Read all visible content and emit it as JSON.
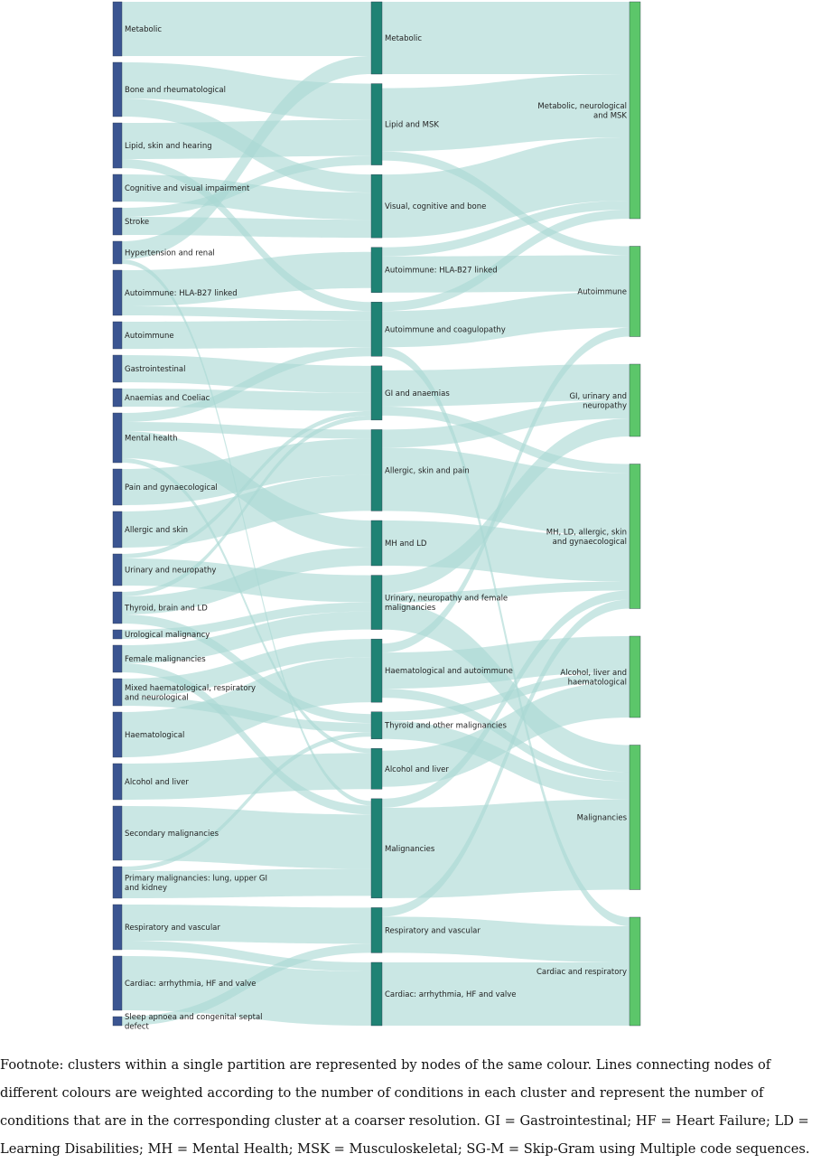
{
  "colors": {
    "level1": "#3b5591",
    "level2": "#1f8274",
    "level3": "#5cc66a",
    "link": "#a9d8d3"
  },
  "levels": [
    {
      "id": "fine",
      "nodes": [
        {
          "id": "f1",
          "label": "Metabolic"
        },
        {
          "id": "f2",
          "label": "Bone and rheumatological"
        },
        {
          "id": "f3",
          "label": "Lipid, skin and hearing"
        },
        {
          "id": "f4",
          "label": "Cognitive and visual impairment"
        },
        {
          "id": "f5",
          "label": "Stroke"
        },
        {
          "id": "f6",
          "label": "Hypertension and renal"
        },
        {
          "id": "f7",
          "label": "Autoimmune: HLA-B27 linked"
        },
        {
          "id": "f8",
          "label": "Autoimmune"
        },
        {
          "id": "f9",
          "label": "Gastrointestinal"
        },
        {
          "id": "f10",
          "label": "Anaemias and Coeliac"
        },
        {
          "id": "f11",
          "label": "Mental health"
        },
        {
          "id": "f12",
          "label": "Pain and gynaecological"
        },
        {
          "id": "f13",
          "label": "Allergic and skin"
        },
        {
          "id": "f14",
          "label": "Urinary and neuropathy"
        },
        {
          "id": "f15",
          "label": "Thyroid, brain and LD"
        },
        {
          "id": "f16",
          "label": "Urological malignancy"
        },
        {
          "id": "f17",
          "label": "Female malignancies"
        },
        {
          "id": "f18",
          "label": "Mixed haematological, respiratory and neurological"
        },
        {
          "id": "f19",
          "label": "Haematological"
        },
        {
          "id": "f20",
          "label": "Alcohol and liver"
        },
        {
          "id": "f21",
          "label": "Secondary malignancies"
        },
        {
          "id": "f22",
          "label": "Primary malignancies: lung, upper GI and kidney"
        },
        {
          "id": "f23",
          "label": "Respiratory and vascular"
        },
        {
          "id": "f24",
          "label": "Cardiac: arrhythmia, HF and valve"
        },
        {
          "id": "f25",
          "label": "Sleep apnoea and congenital septal defect"
        }
      ]
    },
    {
      "id": "medium",
      "nodes": [
        {
          "id": "m1",
          "label": "Metabolic"
        },
        {
          "id": "m2",
          "label": "Lipid and MSK"
        },
        {
          "id": "m3",
          "label": "Visual, cognitive and bone"
        },
        {
          "id": "m4",
          "label": "Autoimmune: HLA-B27 linked"
        },
        {
          "id": "m5",
          "label": "Autoimmune and coagulopathy"
        },
        {
          "id": "m6",
          "label": "GI and anaemias"
        },
        {
          "id": "m7",
          "label": "Allergic, skin and pain"
        },
        {
          "id": "m8",
          "label": "MH and LD"
        },
        {
          "id": "m9",
          "label": "Urinary, neuropathy and female malignancies"
        },
        {
          "id": "m10",
          "label": "Haematological and autoimmune"
        },
        {
          "id": "m11",
          "label": "Thyroid and other malignancies"
        },
        {
          "id": "m12",
          "label": "Alcohol and liver"
        },
        {
          "id": "m13",
          "label": "Malignancies"
        },
        {
          "id": "m14",
          "label": "Respiratory and vascular"
        },
        {
          "id": "m15",
          "label": "Cardiac: arrhythmia, HF and valve"
        }
      ]
    },
    {
      "id": "coarse",
      "nodes": [
        {
          "id": "c1",
          "label": "Metabolic, neurological and MSK"
        },
        {
          "id": "c2",
          "label": "Autoimmune"
        },
        {
          "id": "c3",
          "label": "GI, urinary and neuropathy"
        },
        {
          "id": "c4",
          "label": "MH, LD, allergic, skin and gynaecological"
        },
        {
          "id": "c5",
          "label": "Alcohol, liver and haematological"
        },
        {
          "id": "c6",
          "label": "Malignancies"
        },
        {
          "id": "c7",
          "label": "Cardiac and respiratory"
        }
      ]
    }
  ],
  "links": [
    {
      "source": "f1",
      "target": "m1",
      "value": 6
    },
    {
      "source": "f2",
      "target": "m2",
      "value": 4
    },
    {
      "source": "f2",
      "target": "m3",
      "value": 2
    },
    {
      "source": "f3",
      "target": "m2",
      "value": 4
    },
    {
      "source": "f3",
      "target": "m5",
      "value": 1
    },
    {
      "source": "f4",
      "target": "m3",
      "value": 3
    },
    {
      "source": "f5",
      "target": "m3",
      "value": 2
    },
    {
      "source": "f5",
      "target": "m2",
      "value": 1
    },
    {
      "source": "f6",
      "target": "m1",
      "value": 2
    },
    {
      "source": "f6",
      "target": "m13",
      "value": 0.5
    },
    {
      "source": "f7",
      "target": "m4",
      "value": 4
    },
    {
      "source": "f7",
      "target": "m5",
      "value": 1
    },
    {
      "source": "f8",
      "target": "m5",
      "value": 3
    },
    {
      "source": "f9",
      "target": "m6",
      "value": 3
    },
    {
      "source": "f10",
      "target": "m6",
      "value": 2
    },
    {
      "source": "f11",
      "target": "m8",
      "value": 3
    },
    {
      "source": "f11",
      "target": "m7",
      "value": 1
    },
    {
      "source": "f11",
      "target": "m5",
      "value": 1
    },
    {
      "source": "f11",
      "target": "m12",
      "value": 0.5
    },
    {
      "source": "f12",
      "target": "m7",
      "value": 4
    },
    {
      "source": "f13",
      "target": "m7",
      "value": 4
    },
    {
      "source": "f14",
      "target": "m9",
      "value": 3
    },
    {
      "source": "f14",
      "target": "m6",
      "value": 0.5
    },
    {
      "source": "f15",
      "target": "m8",
      "value": 2
    },
    {
      "source": "f15",
      "target": "m11",
      "value": 1
    },
    {
      "source": "f15",
      "target": "m6",
      "value": 0.5
    },
    {
      "source": "f16",
      "target": "m9",
      "value": 1
    },
    {
      "source": "f17",
      "target": "m9",
      "value": 2
    },
    {
      "source": "f17",
      "target": "m13",
      "value": 1
    },
    {
      "source": "f18",
      "target": "m10",
      "value": 2
    },
    {
      "source": "f18",
      "target": "m11",
      "value": 1
    },
    {
      "source": "f19",
      "target": "m10",
      "value": 5
    },
    {
      "source": "f20",
      "target": "m12",
      "value": 4
    },
    {
      "source": "f21",
      "target": "m13",
      "value": 6
    },
    {
      "source": "f22",
      "target": "m13",
      "value": 3
    },
    {
      "source": "f22",
      "target": "m11",
      "value": 0.5
    },
    {
      "source": "f23",
      "target": "m14",
      "value": 4
    },
    {
      "source": "f23",
      "target": "m15",
      "value": 1
    },
    {
      "source": "f24",
      "target": "m15",
      "value": 6
    },
    {
      "source": "f25",
      "target": "m14",
      "value": 1
    },
    {
      "source": "m1",
      "target": "c1",
      "value": 8
    },
    {
      "source": "m2",
      "target": "c1",
      "value": 7
    },
    {
      "source": "m2",
      "target": "c2",
      "value": 1
    },
    {
      "source": "m3",
      "target": "c1",
      "value": 7
    },
    {
      "source": "m4",
      "target": "c2",
      "value": 4
    },
    {
      "source": "m4",
      "target": "c1",
      "value": 1
    },
    {
      "source": "m5",
      "target": "c2",
      "value": 4
    },
    {
      "source": "m5",
      "target": "c7",
      "value": 1
    },
    {
      "source": "m5",
      "target": "c1",
      "value": 1
    },
    {
      "source": "m6",
      "target": "c3",
      "value": 4
    },
    {
      "source": "m6",
      "target": "c4",
      "value": 1
    },
    {
      "source": "m7",
      "target": "c4",
      "value": 7
    },
    {
      "source": "m7",
      "target": "c3",
      "value": 2
    },
    {
      "source": "m8",
      "target": "c4",
      "value": 5
    },
    {
      "source": "m9",
      "target": "c3",
      "value": 2
    },
    {
      "source": "m9",
      "target": "c6",
      "value": 3
    },
    {
      "source": "m9",
      "target": "c4",
      "value": 1
    },
    {
      "source": "m10",
      "target": "c5",
      "value": 4
    },
    {
      "source": "m10",
      "target": "c2",
      "value": 1
    },
    {
      "source": "m10",
      "target": "c6",
      "value": 1
    },
    {
      "source": "m11",
      "target": "c6",
      "value": 2
    },
    {
      "source": "m11",
      "target": "c5",
      "value": 1
    },
    {
      "source": "m12",
      "target": "c5",
      "value": 4
    },
    {
      "source": "m13",
      "target": "c6",
      "value": 10
    },
    {
      "source": "m13",
      "target": "c4",
      "value": 1
    },
    {
      "source": "m14",
      "target": "c7",
      "value": 4
    },
    {
      "source": "m14",
      "target": "c4",
      "value": 1
    },
    {
      "source": "m15",
      "target": "c7",
      "value": 7
    }
  ],
  "footnote": "Footnote: clusters within a single partition are represented by nodes of the same colour. Lines connecting nodes of different colours are weighted according to the number of conditions in each cluster and represent the number of conditions that are in the corresponding cluster at a coarser resolution. GI = Gastrointestinal; HF = Heart Failure; LD = Learning Disabilities; MH = Mental Health; MSK = Musculoskeletal; SG-M = Skip-Gram using Multiple code sequences."
}
